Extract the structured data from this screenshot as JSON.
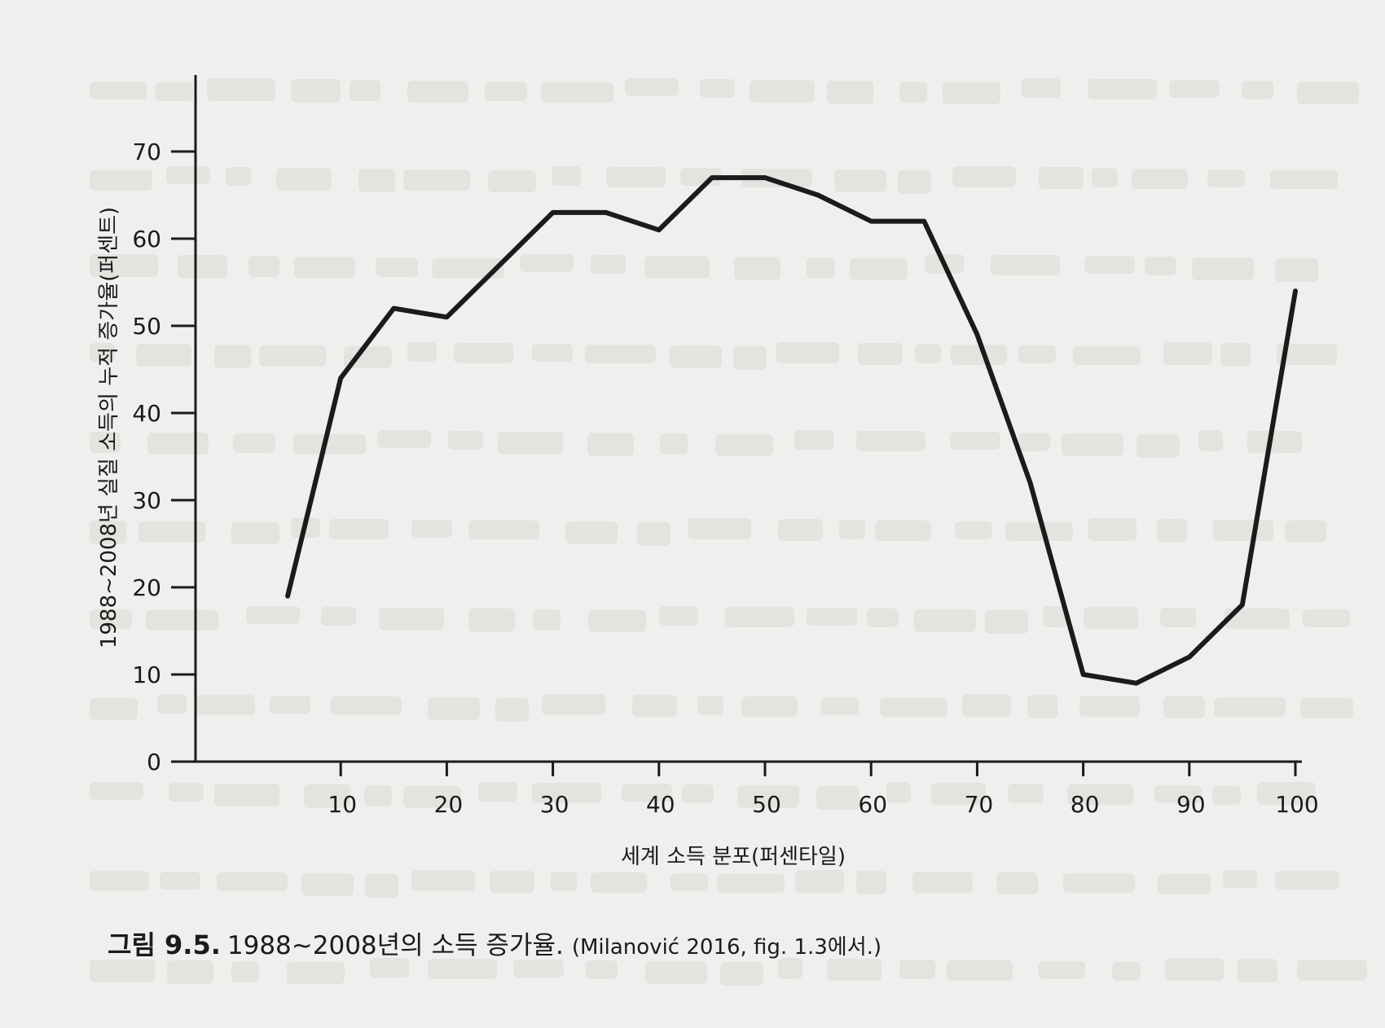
{
  "chart_data": {
    "type": "line",
    "title": "",
    "xlabel": "세계 소득 분포(퍼센타일)",
    "ylabel": "1988~2008년 실질 소득의 누적 증가율(퍼센트)",
    "xlim": [
      0,
      100
    ],
    "ylim": [
      0,
      70
    ],
    "x_ticks": [
      "10",
      "20",
      "30",
      "40",
      "50",
      "60",
      "70",
      "80",
      "90",
      "100"
    ],
    "y_ticks": [
      "0",
      "10",
      "20",
      "30",
      "40",
      "50",
      "60",
      "70"
    ],
    "grid": false,
    "series": [
      {
        "name": "",
        "x": [
          5,
          10,
          15,
          20,
          25,
          30,
          35,
          40,
          45,
          50,
          55,
          60,
          65,
          70,
          75,
          80,
          85,
          90,
          95,
          100
        ],
        "y": [
          19,
          44,
          52,
          51,
          57,
          63,
          63,
          61,
          67,
          67,
          65,
          62,
          62,
          49,
          32,
          10,
          9,
          12,
          18,
          54
        ]
      }
    ]
  },
  "caption": {
    "label": "그림 9.5.",
    "title": "1988~2008년의 소득 증가율.",
    "source": "(Milanović 2016, fig. 1.3에서.)"
  },
  "colors": {
    "line": "#1b1b1b",
    "paper": "#efefed",
    "bleed_text": "#d9d9d6"
  }
}
